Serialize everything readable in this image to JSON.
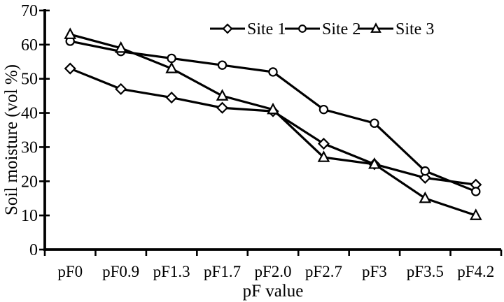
{
  "chart_data": {
    "type": "line",
    "title": "",
    "xlabel": "pF value",
    "ylabel": "Soil moisture (vol %)",
    "categories": [
      "pF0",
      "pF0.9",
      "pF1.3",
      "pF1.7",
      "pF2.0",
      "pF2.7",
      "pF3",
      "pF3.5",
      "pF4.2"
    ],
    "series": [
      {
        "name": "Site 1",
        "marker": "diamond",
        "values": [
          53,
          47,
          44.5,
          41.5,
          40.5,
          31,
          25,
          21,
          19
        ]
      },
      {
        "name": "Site 2",
        "marker": "circle",
        "values": [
          61,
          58,
          56,
          54,
          52,
          41,
          37,
          23,
          17
        ]
      },
      {
        "name": "Site 3",
        "marker": "triangle",
        "values": [
          63,
          59,
          53,
          45,
          41,
          27,
          25,
          15,
          10
        ]
      }
    ],
    "ylim": [
      0,
      70
    ],
    "yticks": [
      0,
      10,
      20,
      30,
      40,
      50,
      60,
      70
    ],
    "grid": false,
    "legend_position": "top-inside",
    "line_color": "#000000",
    "marker_fill": "#ffffff",
    "background": "#ffffff"
  }
}
